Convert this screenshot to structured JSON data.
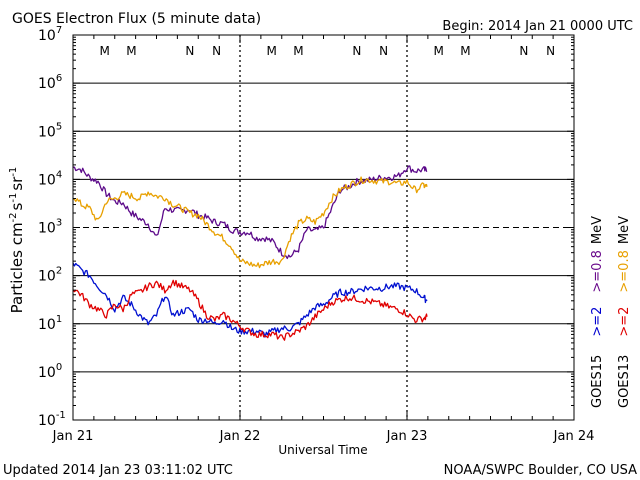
{
  "chart_data": {
    "type": "line",
    "title": "GOES Electron Flux (5 minute data)",
    "begin_label": "Begin: 2014 Jan 21 0000 UTC",
    "xlabel": "Universal Time",
    "ylabel_parts": [
      "Particles cm",
      "-2",
      "s",
      "-1",
      "sr",
      "-1"
    ],
    "y_log": true,
    "ylim_exp": [
      -1,
      7
    ],
    "threshold_exp": 3,
    "y_tick_exponents": [
      "7",
      "6",
      "5",
      "4",
      "3",
      "2",
      "1",
      "0",
      "-1"
    ],
    "x_range_days": [
      0,
      3
    ],
    "x_tick_labels": [
      "Jan 21",
      "Jan 22",
      "Jan 23",
      "Jan 24"
    ],
    "updated_text": "Updated 2014 Jan 23 03:11:02 UTC",
    "credit_text": "NOAA/SWPC Boulder, CO USA",
    "night_markers": [
      {
        "label": "M",
        "x": 0.19,
        "color": "#d00000"
      },
      {
        "label": "M",
        "x": 0.35,
        "color": "#0000c8"
      },
      {
        "label": "N",
        "x": 0.7,
        "color": "#d00000"
      },
      {
        "label": "N",
        "x": 0.86,
        "color": "#0000c8"
      },
      {
        "label": "M",
        "x": 1.19,
        "color": "#d00000"
      },
      {
        "label": "M",
        "x": 1.35,
        "color": "#0000c8"
      },
      {
        "label": "N",
        "x": 1.7,
        "color": "#d00000"
      },
      {
        "label": "N",
        "x": 1.86,
        "color": "#0000c8"
      },
      {
        "label": "M",
        "x": 2.19,
        "color": "#d00000"
      },
      {
        "label": "M",
        "x": 2.35,
        "color": "#0000c8"
      },
      {
        "label": "N",
        "x": 2.7,
        "color": "#d00000"
      },
      {
        "label": "N",
        "x": 2.86,
        "color": "#0000c8"
      }
    ],
    "legend": {
      "goes15": {
        "label": "GOES15",
        "low": ">=2",
        "high": ">=0.8",
        "low_color": "#0000d0",
        "high_color": "#6a0a8c"
      },
      "goes13": {
        "label": "GOES13",
        "low": ">=2",
        "high": ">=0.8",
        "low_color": "#e00000",
        "high_color": "#e8a000"
      },
      "unit": "MeV"
    },
    "series": [
      {
        "id": "g15_08",
        "color": "#5c0a8a",
        "x": [
          0.0,
          0.05,
          0.1,
          0.15,
          0.2,
          0.25,
          0.3,
          0.35,
          0.4,
          0.45,
          0.5,
          0.55,
          0.6,
          0.65,
          0.7,
          0.75,
          0.8,
          0.85,
          0.9,
          0.95,
          1.0,
          1.05,
          1.1,
          1.15,
          1.2,
          1.25,
          1.3,
          1.35,
          1.4,
          1.45,
          1.5,
          1.55,
          1.6,
          1.65,
          1.7,
          1.75,
          1.8,
          1.85,
          1.9,
          1.95,
          2.0,
          2.05,
          2.1,
          2.12
        ],
        "y": [
          18000,
          16000,
          11000,
          9000,
          5000,
          3500,
          3200,
          2000,
          1500,
          1200,
          600,
          2500,
          2300,
          2200,
          2400,
          1800,
          1600,
          1300,
          1200,
          900,
          800,
          800,
          600,
          600,
          500,
          300,
          250,
          350,
          900,
          850,
          1000,
          2500,
          6000,
          7000,
          9000,
          9500,
          10000,
          11000,
          11000,
          12000,
          18000,
          15000,
          16000,
          15000
        ]
      },
      {
        "id": "g13_08",
        "color": "#e8a000",
        "x": [
          0.0,
          0.05,
          0.1,
          0.15,
          0.2,
          0.25,
          0.3,
          0.35,
          0.4,
          0.45,
          0.5,
          0.55,
          0.6,
          0.65,
          0.7,
          0.75,
          0.8,
          0.85,
          0.9,
          0.95,
          1.0,
          1.05,
          1.1,
          1.15,
          1.2,
          1.25,
          1.3,
          1.35,
          1.4,
          1.45,
          1.5,
          1.55,
          1.6,
          1.65,
          1.7,
          1.75,
          1.8,
          1.85,
          1.9,
          1.95,
          2.0,
          2.05,
          2.1,
          2.12
        ],
        "y": [
          4500,
          3000,
          2500,
          1300,
          3500,
          4000,
          5000,
          4500,
          4000,
          5500,
          4500,
          4200,
          3000,
          2500,
          2000,
          1800,
          1200,
          800,
          600,
          400,
          200,
          180,
          160,
          180,
          200,
          200,
          600,
          1200,
          1500,
          1300,
          2000,
          4000,
          6000,
          7500,
          9000,
          10000,
          9500,
          9000,
          9000,
          8000,
          9000,
          6000,
          7500,
          7000
        ]
      },
      {
        "id": "g15_2",
        "color": "#0010d0",
        "x": [
          0.0,
          0.05,
          0.1,
          0.15,
          0.2,
          0.25,
          0.3,
          0.35,
          0.4,
          0.45,
          0.5,
          0.55,
          0.6,
          0.65,
          0.7,
          0.75,
          0.8,
          0.85,
          0.9,
          0.95,
          1.0,
          1.05,
          1.1,
          1.15,
          1.2,
          1.25,
          1.3,
          1.35,
          1.4,
          1.45,
          1.5,
          1.55,
          1.6,
          1.65,
          1.7,
          1.75,
          1.8,
          1.85,
          1.9,
          1.95,
          2.0,
          2.05,
          2.1,
          2.12
        ],
        "y": [
          180,
          130,
          100,
          60,
          40,
          20,
          35,
          25,
          15,
          10,
          15,
          40,
          15,
          18,
          20,
          12,
          12,
          10,
          12,
          8,
          7,
          7,
          7,
          6,
          7,
          8,
          8,
          10,
          15,
          22,
          25,
          35,
          45,
          45,
          50,
          55,
          55,
          55,
          60,
          60,
          55,
          50,
          35,
          30
        ]
      },
      {
        "id": "g13_2",
        "color": "#e00000",
        "x": [
          0.0,
          0.05,
          0.1,
          0.15,
          0.2,
          0.25,
          0.3,
          0.35,
          0.4,
          0.45,
          0.5,
          0.55,
          0.6,
          0.65,
          0.7,
          0.75,
          0.8,
          0.85,
          0.9,
          0.95,
          1.0,
          1.05,
          1.1,
          1.15,
          1.2,
          1.25,
          1.3,
          1.35,
          1.4,
          1.45,
          1.5,
          1.55,
          1.6,
          1.65,
          1.7,
          1.75,
          1.8,
          1.85,
          1.9,
          1.95,
          2.0,
          2.05,
          2.1,
          2.12
        ],
        "y": [
          55,
          40,
          25,
          20,
          15,
          25,
          20,
          40,
          45,
          60,
          70,
          50,
          75,
          60,
          50,
          30,
          15,
          12,
          15,
          12,
          9,
          7,
          6,
          6,
          6,
          5,
          6,
          7,
          9,
          14,
          20,
          28,
          32,
          35,
          33,
          30,
          28,
          25,
          22,
          20,
          16,
          12,
          13,
          14
        ]
      }
    ]
  }
}
